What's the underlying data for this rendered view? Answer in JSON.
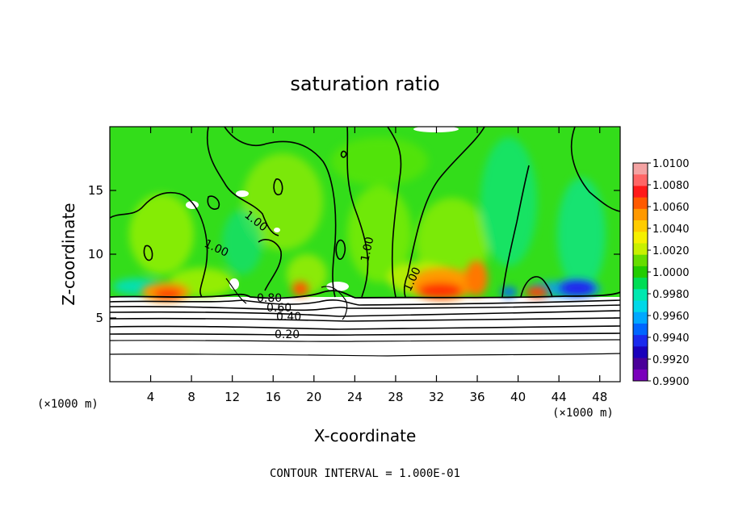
{
  "chart_data": {
    "type": "heatmap",
    "title": "saturation ratio",
    "xlabel": "X-coordinate",
    "ylabel": "Z-coordinate",
    "x_unit": "(×1000 m)",
    "y_unit": "(×1000 m)",
    "xlim": [
      0,
      50
    ],
    "ylim": [
      0,
      20
    ],
    "xticks": [
      4,
      8,
      12,
      16,
      20,
      24,
      28,
      32,
      36,
      40,
      44,
      48
    ],
    "yticks": [
      5,
      10,
      15
    ],
    "colorbar": {
      "levels": [
        "1.0100",
        "1.0080",
        "1.0060",
        "1.0040",
        "1.0020",
        "1.0000",
        "0.9980",
        "0.9960",
        "0.9940",
        "0.9920",
        "0.9900"
      ],
      "colors": [
        "#f4a3a3",
        "#ff6666",
        "#ff1a1a",
        "#ff5a00",
        "#ff9900",
        "#ffcc00",
        "#f5f000",
        "#c8f000",
        "#66dd00",
        "#22cc00",
        "#00dd55",
        "#00e8b0",
        "#00d8e8",
        "#00a8ff",
        "#0066ff",
        "#1a2aee",
        "#1a00bb",
        "#4a0099",
        "#7a00bb"
      ]
    },
    "contour_labels": [
      "1.00",
      "1.00",
      "1.00",
      "1.00",
      "0.80",
      "0.60",
      "0.40",
      "0.20"
    ],
    "footer": "CONTOUR INTERVAL = 1.000E-01",
    "grid": false,
    "legend": "colorbar-right"
  }
}
